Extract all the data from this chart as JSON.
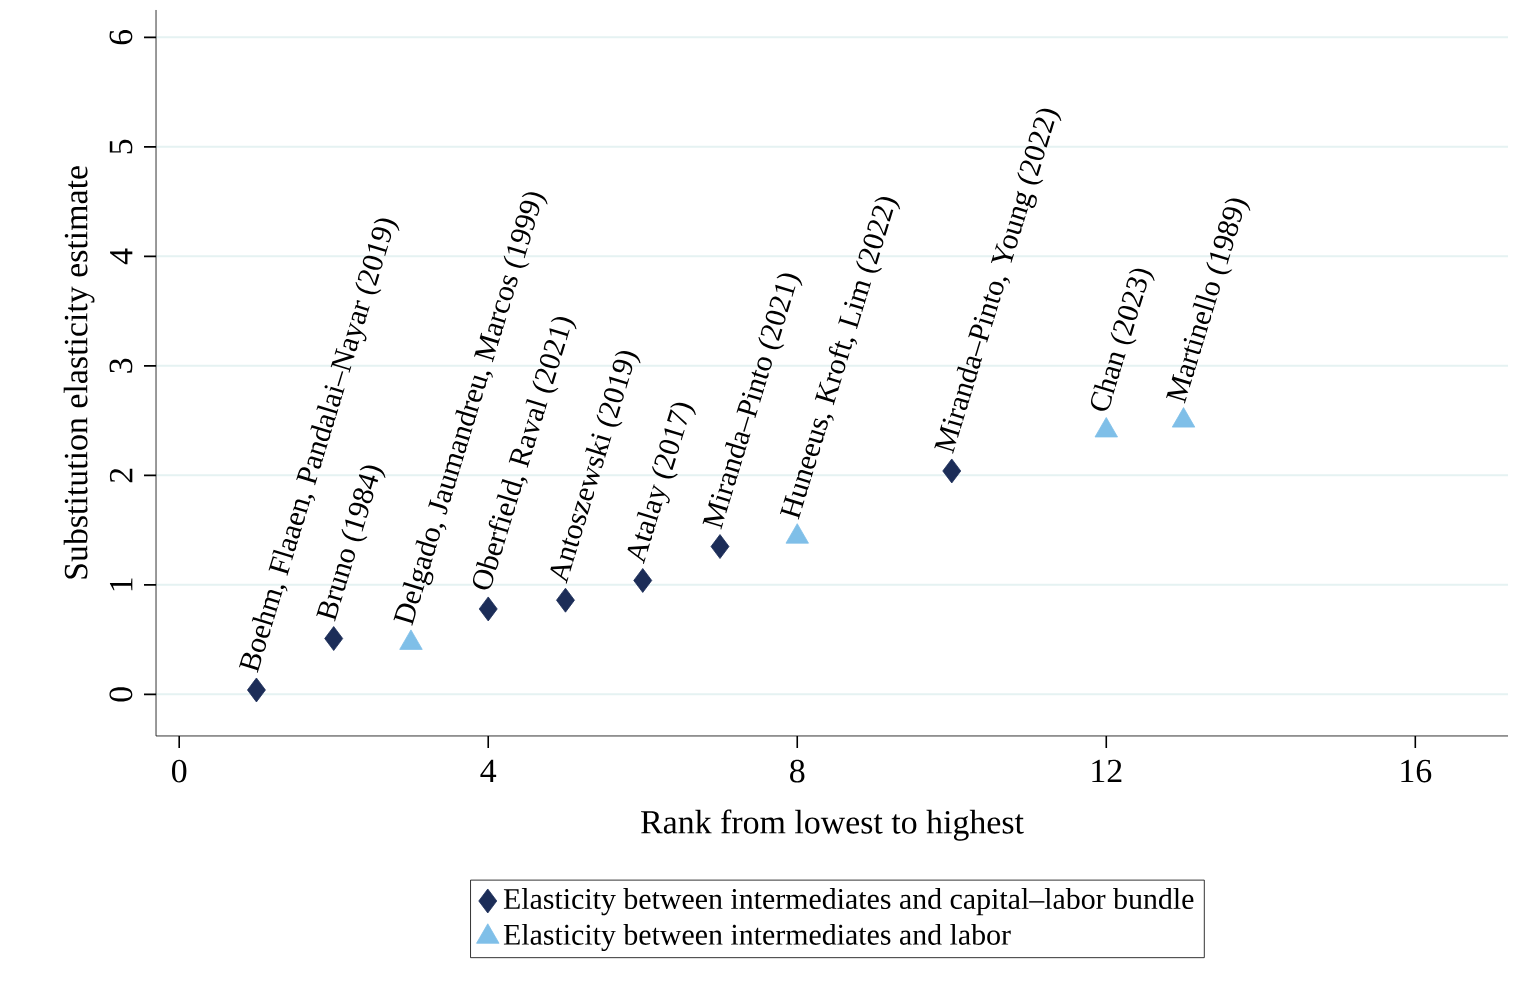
{
  "chart_data": {
    "type": "scatter",
    "xlabel": "Rank from lowest to highest",
    "ylabel": "Substitution elasticity estimate",
    "series": [
      {
        "name": "Elasticity between intermediates and capital–labor bundle",
        "color": "#1c2d58",
        "marker": "diamond",
        "x": [
          1,
          2,
          4,
          5,
          6,
          7,
          10
        ],
        "values": [
          0.04,
          0.51,
          0.78,
          0.86,
          1.04,
          1.35,
          2.04
        ]
      },
      {
        "name": "Elasticity between intermediates and labor",
        "color": "#7fbfe8",
        "marker": "triangle",
        "x": [
          3,
          8,
          12,
          13
        ],
        "values": [
          0.47,
          1.44,
          2.41,
          2.5
        ]
      }
    ],
    "annotations": [
      {
        "text": "Boehm, Flaaen, Pandalai–Nayar (2019)",
        "x": 1,
        "y": 0.04
      },
      {
        "text": "Bruno (1984)",
        "x": 2,
        "y": 0.51
      },
      {
        "text": "Delgado, Jaumandreu, Marcos (1999)",
        "x": 3,
        "y": 0.47
      },
      {
        "text": "Oberfield, Raval (2021)",
        "x": 4,
        "y": 0.78
      },
      {
        "text": "Antoszewski (2019)",
        "x": 5,
        "y": 0.86
      },
      {
        "text": "Atalay (2017)",
        "x": 6,
        "y": 1.04
      },
      {
        "text": "Miranda–Pinto (2021)",
        "x": 7,
        "y": 1.35
      },
      {
        "text": "Huneeus, Kroft, Lim (2022)",
        "x": 8,
        "y": 1.44
      },
      {
        "text": "Miranda–Pinto, Young (2022)",
        "x": 10,
        "y": 2.04
      },
      {
        "text": "Chan (2023)",
        "x": 12,
        "y": 2.41
      },
      {
        "text": "Martinello (1989)",
        "x": 13,
        "y": 2.5
      }
    ],
    "xlim": [
      -0.3,
      17.2
    ],
    "ylim": [
      -0.38,
      6.25
    ],
    "xticks": [
      0,
      4,
      8,
      12,
      16
    ],
    "yticks": [
      0,
      1,
      2,
      3,
      4,
      5,
      6
    ],
    "grid": "y",
    "legend": "bottom"
  }
}
